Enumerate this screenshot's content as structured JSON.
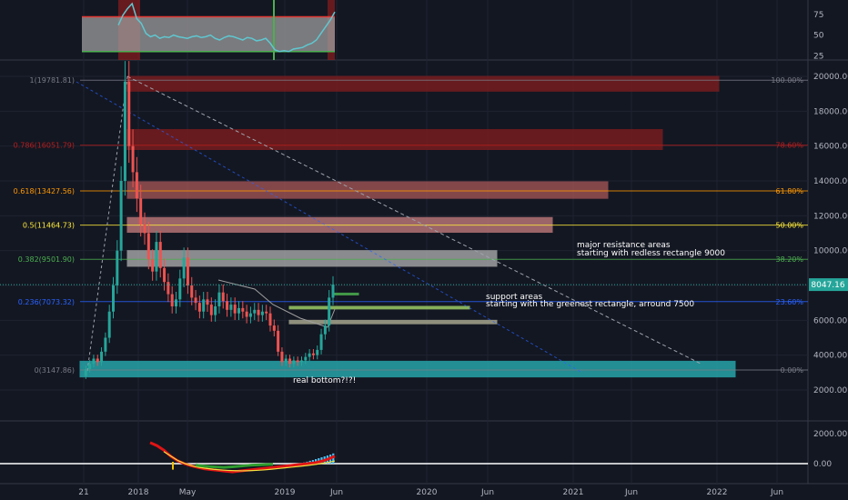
{
  "chart_data": [
    {
      "type": "line",
      "panel": "oscillator-top",
      "y_ticks": [
        "75",
        "50",
        "25"
      ],
      "ylim": [
        22,
        88
      ],
      "colors": {
        "line": "#5fc7d1",
        "band_fill": "#9e9e9e",
        "band_border": "#e53935",
        "upper_line": "#e53935",
        "lower_line": "#4caf50"
      },
      "upper_level": 72,
      "lower_level": 30,
      "values": [
        62,
        74,
        82,
        88,
        70,
        64,
        52,
        48,
        50,
        46,
        48,
        47,
        50,
        48,
        47,
        46,
        48,
        49,
        47,
        48,
        50,
        46,
        44,
        47,
        49,
        48,
        46,
        44,
        47,
        46,
        43,
        44,
        46,
        40,
        32,
        30,
        31,
        30,
        33,
        34,
        35,
        38,
        40,
        44,
        52,
        60,
        68,
        78
      ]
    },
    {
      "type": "candlestick",
      "panel": "price-main",
      "y_ticks": [
        "20000.00",
        "18000.00",
        "16000.00",
        "14000.00",
        "12000.00",
        "10000.00",
        "8000.00",
        "6000.00",
        "4000.00",
        "2000.00"
      ],
      "x_ticks": [
        "21",
        "2018",
        "May",
        "2019",
        "Jun",
        "2020",
        "Jun",
        "2021",
        "Jun",
        "2022",
        "Jun"
      ],
      "ylim": [
        0,
        21500
      ],
      "current_price": "8047.16",
      "colors": {
        "up": "#26a69a",
        "down": "#ef5350",
        "axis_text": "#b2b5be",
        "grid": "#2a2e39"
      },
      "price_path": [
        2800,
        3200,
        3500,
        3800,
        3600,
        4200,
        5000,
        6500,
        8000,
        10000,
        14000,
        19700,
        16000,
        14500,
        13000,
        11500,
        11000,
        9500,
        8800,
        10500,
        9000,
        8200,
        7500,
        6800,
        7200,
        8400,
        9600,
        8000,
        7300,
        7000,
        6500,
        7200,
        6900,
        6300,
        6800,
        7600,
        7100,
        6600,
        6900,
        6400,
        6700,
        6500,
        6200,
        6400,
        6600,
        6300,
        6500,
        6400,
        5700,
        5400,
        4200,
        3600,
        3800,
        3500,
        3700,
        3600,
        3700,
        3900,
        4100,
        4000,
        4300,
        5200,
        5700,
        7300,
        8047
      ],
      "fib_levels": [
        {
          "label": "1(19781.81)",
          "value": 19781,
          "right": "100.00%",
          "color": "#787b86"
        },
        {
          "label": "0.786(16051.79)",
          "value": 16051,
          "right": "78.60%",
          "color": "#b71c1c"
        },
        {
          "label": "0.618(13427.56)",
          "value": 13427,
          "right": "61.80%",
          "color": "#ff9800"
        },
        {
          "label": "0.5(11464.73)",
          "value": 11464,
          "right": "50.00%",
          "color": "#ffeb3b"
        },
        {
          "label": "0.382(9501.90)",
          "value": 9501,
          "right": "38.20%",
          "color": "#4caf50"
        },
        {
          "label": "0.236(7073.32)",
          "value": 7073,
          "right": "23.60%",
          "color": "#2962ff"
        },
        {
          "label": "0(3147.86)",
          "value": 3147,
          "right": "0.00%",
          "color": "#787b86"
        }
      ],
      "zones": [
        {
          "kind": "resistance",
          "low": 19150,
          "high": 20000,
          "color": "#8b1d1d"
        },
        {
          "kind": "resistance",
          "low": 15800,
          "high": 16950,
          "color": "#8b1d1d"
        },
        {
          "kind": "resistance",
          "low": 13000,
          "high": 13950,
          "color": "#b35c5c"
        },
        {
          "kind": "resistance",
          "low": 11050,
          "high": 11900,
          "color": "#d78686"
        },
        {
          "kind": "resistance",
          "low": 9100,
          "high": 10000,
          "color": "#bdbdbd"
        },
        {
          "kind": "support",
          "low": 7500,
          "high": 7560,
          "color": "#4caf50"
        },
        {
          "kind": "support",
          "low": 6650,
          "high": 6800,
          "color": "#9ccc65"
        },
        {
          "kind": "support",
          "low": 5800,
          "high": 6000,
          "color": "#a5a58d"
        },
        {
          "kind": "support",
          "low": 2750,
          "high": 3650,
          "color": "#26a3a8"
        }
      ],
      "annotations": {
        "resistance_title": "major resistance areas",
        "resistance_detail": "starting with redless rectangle 9000",
        "support_title": "support areas",
        "support_detail": "starting with the greenest rectangle, arround 7500",
        "bottom_note": "real bottom?!?!"
      }
    },
    {
      "type": "area",
      "panel": "oscillator-bottom",
      "y_ticks": [
        "2000.00",
        "0.00"
      ],
      "ylim": [
        -1000,
        2600
      ],
      "colors": {
        "red_line": "#e01414",
        "green_line": "#2e9d2e",
        "yellow_line": "#f0e040",
        "zero_line": "#ffffff",
        "hist": "#4fc3f7"
      },
      "red_line": [
        1400,
        1200,
        900,
        500,
        200,
        0,
        -150,
        -250,
        -350,
        -400,
        -450,
        -500,
        -550,
        -500,
        -450,
        -400,
        -350,
        -300,
        -250,
        -200,
        -150,
        -100,
        -50,
        0,
        50,
        150,
        300,
        500
      ],
      "green_line": [
        -100,
        -150,
        -200,
        -230,
        -250,
        -220,
        -180,
        -140,
        -100,
        -80,
        -60,
        -40
      ],
      "yellow_line": [
        800,
        500,
        200,
        0,
        -150,
        -250,
        -320,
        -380,
        -420,
        -450,
        -470,
        -480,
        -470,
        -450,
        -420,
        -380,
        -330,
        -280,
        -230,
        -180,
        -130,
        -70,
        0,
        80,
        180
      ],
      "histogram": [
        40,
        80,
        130,
        190,
        240,
        300,
        360,
        420,
        480,
        540,
        600,
        680
      ]
    }
  ]
}
